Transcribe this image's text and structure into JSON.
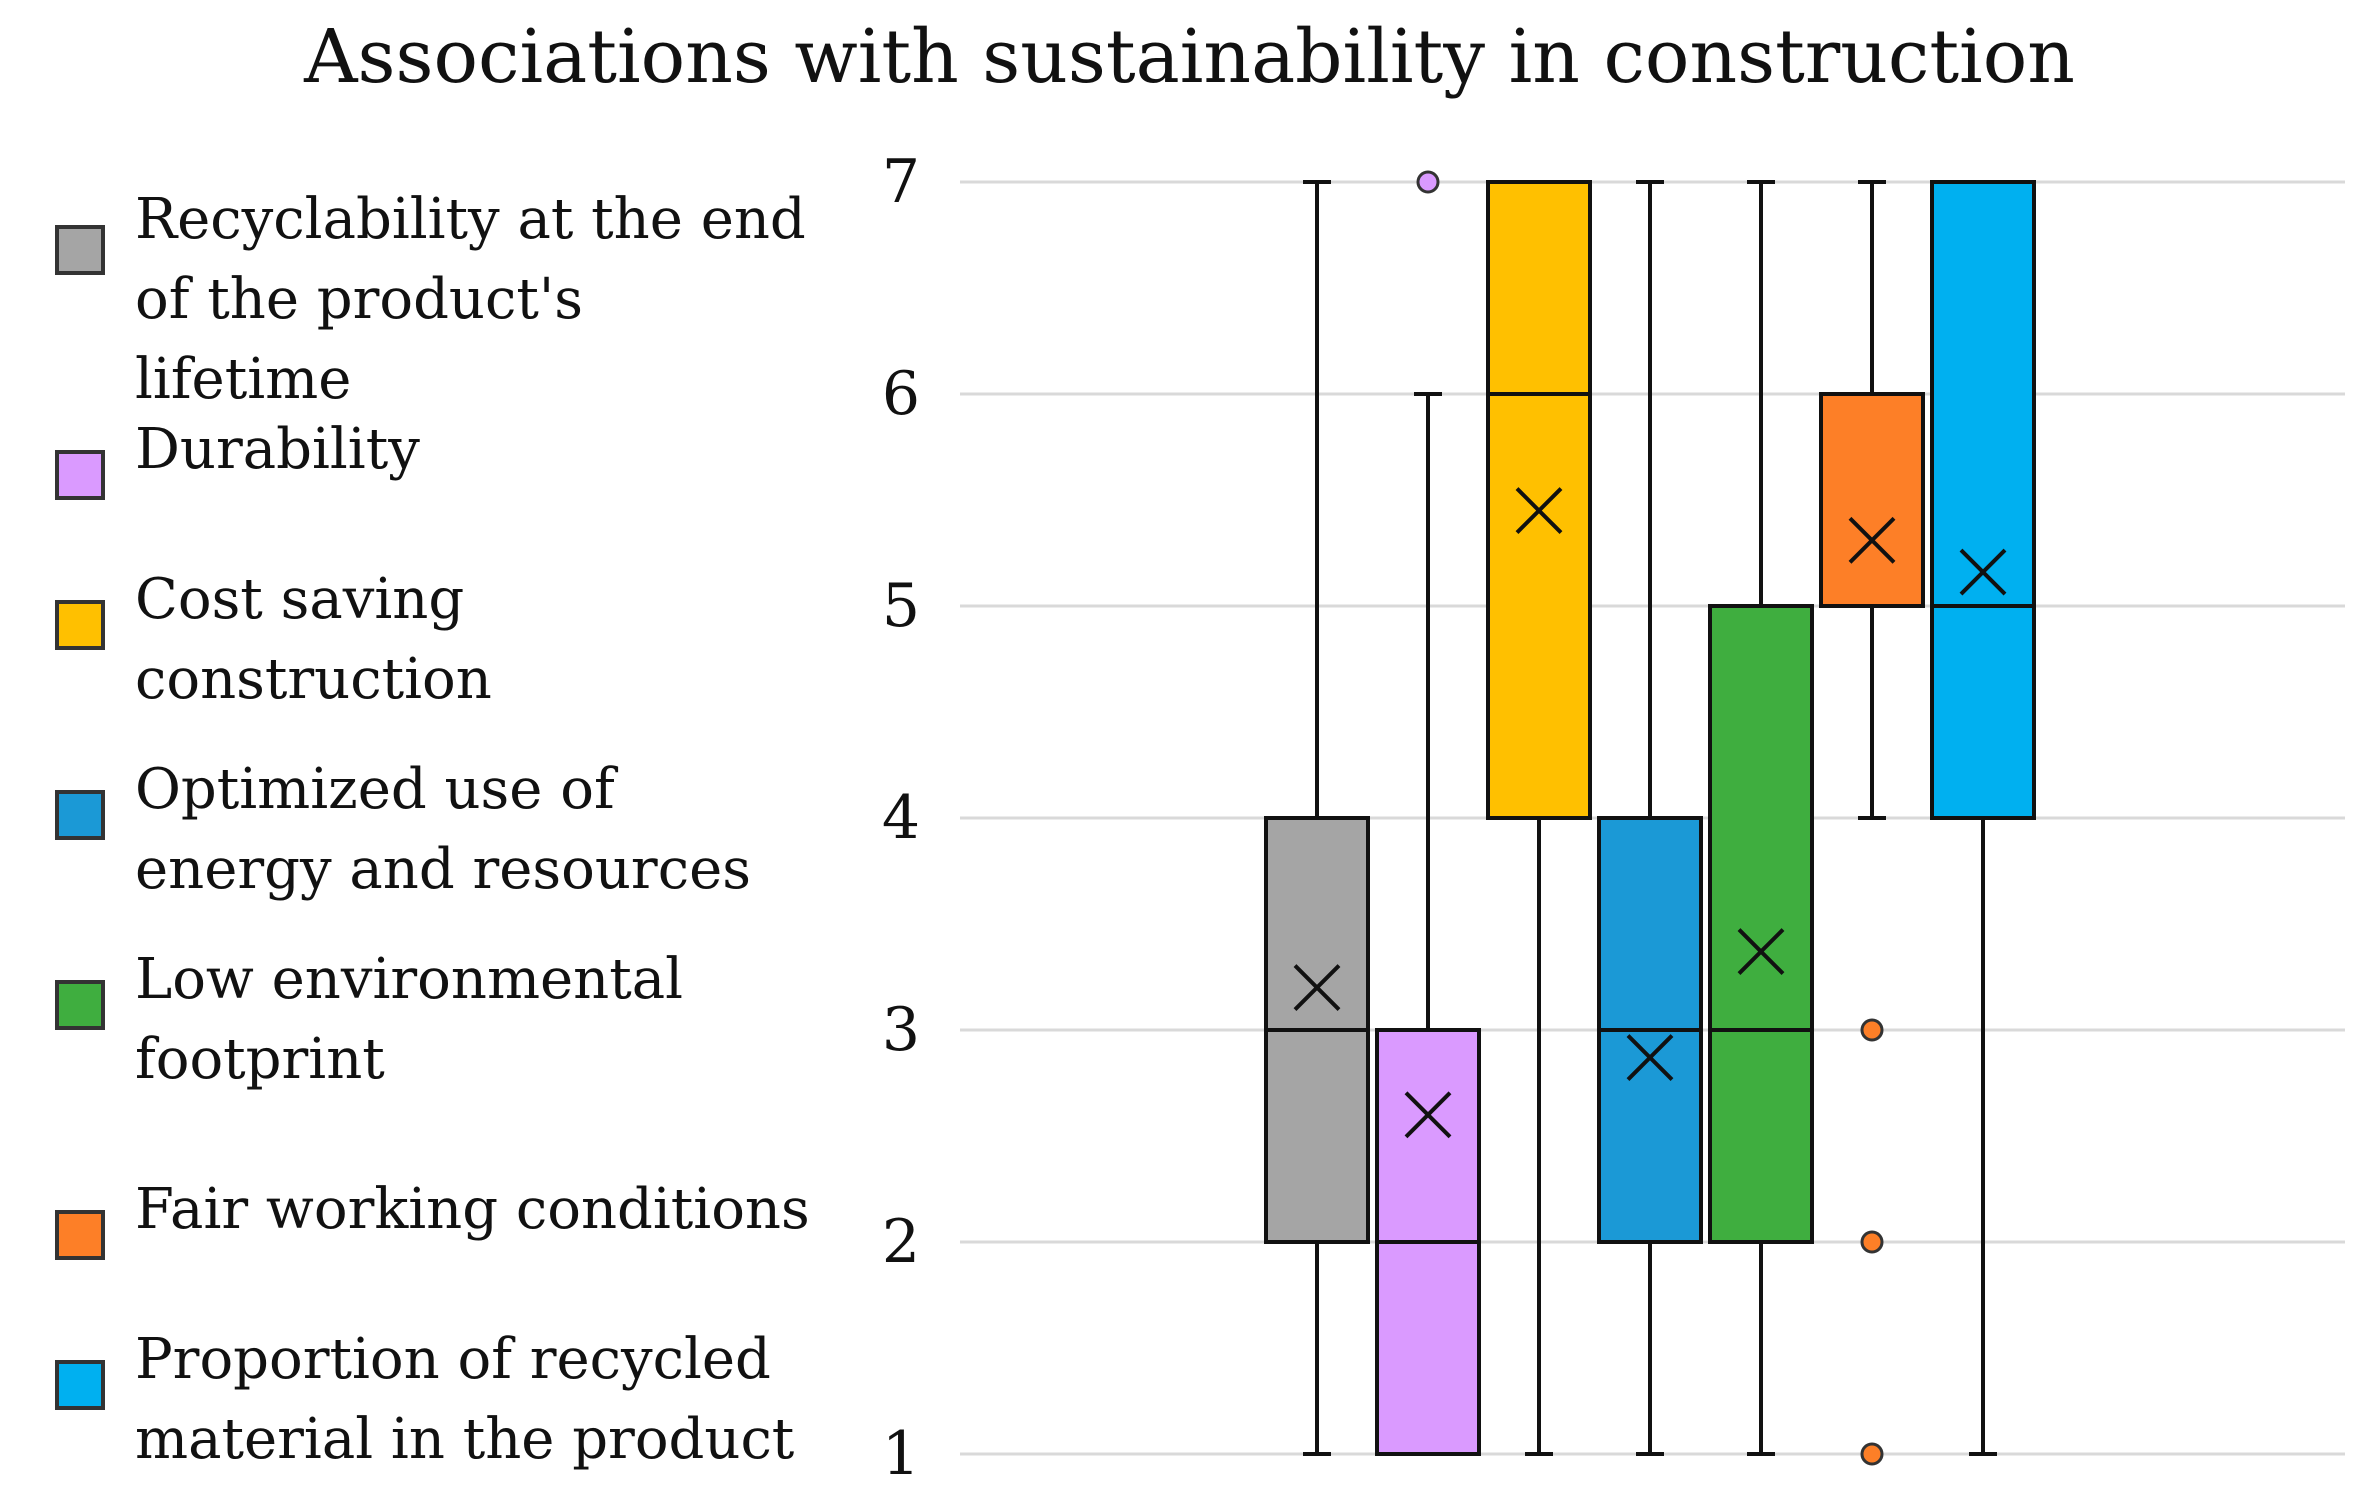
{
  "chart_data": {
    "type": "box",
    "title": "Associations with sustainability in construction",
    "xlabel": "",
    "ylabel": "",
    "ylim": [
      1,
      7
    ],
    "yticks": [
      1,
      2,
      3,
      4,
      5,
      6,
      7
    ],
    "grid": true,
    "legend_position": "left",
    "series": [
      {
        "name": "Recyclability at the end of the product's lifetime",
        "color": "#a5a5a5",
        "min": 1,
        "q1": 2,
        "median": 3,
        "q3": 4,
        "max": 7,
        "mean": 3.2,
        "outliers": []
      },
      {
        "name": "Durability",
        "color": "#da9aff",
        "min": 1,
        "q1": 1,
        "median": 2,
        "q3": 3,
        "max": 6,
        "mean": 2.6,
        "outliers": [
          7
        ]
      },
      {
        "name": "Cost saving construction",
        "color": "#ffc000",
        "min": 1,
        "q1": 4,
        "median": 6,
        "q3": 7,
        "max": 7,
        "mean": 5.45,
        "outliers": []
      },
      {
        "name": "Optimized use of energy and resources",
        "color": "#1b99d6",
        "min": 1,
        "q1": 2,
        "median": 3,
        "q3": 4,
        "max": 7,
        "mean": 2.87,
        "outliers": []
      },
      {
        "name": "Low environmental footprint",
        "color": "#3fae3f",
        "min": 1,
        "q1": 2,
        "median": 3,
        "q3": 5,
        "max": 7,
        "mean": 3.37,
        "outliers": []
      },
      {
        "name": "Fair working conditions",
        "color": "#fd7f27",
        "min": 4,
        "q1": 5,
        "median": 5,
        "q3": 6,
        "max": 7,
        "mean": 5.31,
        "outliers": [
          3,
          2,
          1
        ]
      },
      {
        "name": "Proportion of recycled material in the product",
        "color": "#00b0f0",
        "min": 1,
        "q1": 4,
        "median": 5,
        "q3": 7,
        "max": 7,
        "mean": 5.16,
        "outliers": []
      }
    ]
  },
  "legend": {
    "items": [
      {
        "label": "Recyclability at the end\nof the product's lifetime"
      },
      {
        "label": "Durability"
      },
      {
        "label": "Cost saving\nconstruction"
      },
      {
        "label": "Optimized use of\nenergy and resources"
      },
      {
        "label": "Low environmental\nfootprint"
      },
      {
        "label": "Fair working conditions"
      },
      {
        "label": "Proportion of recycled\nmaterial in the product"
      }
    ]
  }
}
